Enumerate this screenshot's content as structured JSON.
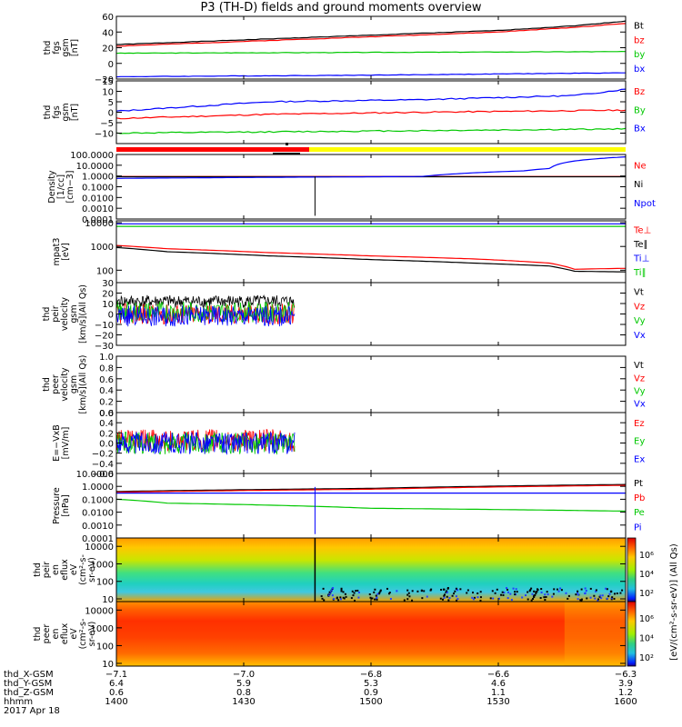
{
  "title": "P3 (TH-D) fields and ground moments overview",
  "colors": {
    "black": "#000000",
    "red": "#ff0000",
    "green": "#00c800",
    "blue": "#0000ff",
    "yellow": "#ffff00"
  },
  "chart_data": [
    {
      "type": "line",
      "ylabel": [
        "thd",
        "fgs",
        "gsm",
        "[nT]"
      ],
      "ylim": [
        -20,
        60
      ],
      "ticks": [
        [
          "60",
          60
        ],
        [
          "40",
          40
        ],
        [
          "20",
          20
        ],
        [
          "0",
          0
        ],
        [
          "−20",
          -20
        ]
      ],
      "series": [
        {
          "name": "Bt",
          "color": "black",
          "x": [
            0,
            0.25,
            0.5,
            0.75,
            0.9,
            1
          ],
          "y": [
            24,
            30,
            36,
            42,
            48,
            54
          ]
        },
        {
          "name": "bz",
          "color": "red",
          "x": [
            0,
            0.25,
            0.5,
            0.75,
            0.9,
            1
          ],
          "y": [
            22,
            28,
            34,
            40,
            46,
            51
          ]
        },
        {
          "name": "by",
          "color": "green",
          "x": [
            0,
            0.5,
            1
          ],
          "y": [
            13,
            14,
            15
          ]
        },
        {
          "name": "bx",
          "color": "blue",
          "x": [
            0,
            0.5,
            1
          ],
          "y": [
            -17,
            -15,
            -12
          ]
        }
      ]
    },
    {
      "type": "line",
      "ylabel": [
        "thd",
        "fgs",
        "gsm",
        "[nT]"
      ],
      "ylim": [
        -15,
        15
      ],
      "ticks": [
        [
          "15",
          15
        ],
        [
          "10",
          10
        ],
        [
          "5",
          5
        ],
        [
          "0",
          0
        ],
        [
          "−5",
          -5
        ],
        [
          "−10",
          -10
        ]
      ],
      "series": [
        {
          "name": "Bz",
          "color": "red",
          "x": [
            0,
            0.3,
            0.6,
            1
          ],
          "y": [
            -3,
            -1,
            0,
            1
          ]
        },
        {
          "name": "By",
          "color": "green",
          "x": [
            0,
            0.5,
            1
          ],
          "y": [
            -10,
            -9,
            -8
          ]
        },
        {
          "name": "Bx",
          "color": "blue",
          "x": [
            0,
            0.3,
            0.6,
            0.9,
            1
          ],
          "y": [
            0.5,
            5,
            6,
            8,
            11
          ]
        }
      ]
    },
    {
      "type": "line",
      "ylabel": [
        "Density",
        "[1/cc]",
        "[cm−3]"
      ],
      "log": true,
      "ylim": [
        0.0001,
        100
      ],
      "ticks": [
        [
          "100.0000",
          100
        ],
        [
          "10.0000",
          10
        ],
        [
          "1.0000",
          1
        ],
        [
          "0.1000",
          0.1
        ],
        [
          "0.0100",
          0.01
        ],
        [
          "0.0010",
          0.001
        ],
        [
          "0.0001",
          0.0001
        ]
      ],
      "series": [
        {
          "name": "Ne",
          "color": "red",
          "x": [
            0,
            1
          ],
          "y": [
            0.9,
            0.9
          ]
        },
        {
          "name": "Ni",
          "color": "black",
          "x": [
            0,
            1
          ],
          "y": [
            0.85,
            0.85
          ]
        },
        {
          "name": "Npot",
          "color": "blue",
          "x": [
            0,
            0.2,
            0.6,
            0.8,
            0.85,
            0.9,
            1
          ],
          "y": [
            0.6,
            0.7,
            0.9,
            3,
            5,
            25,
            60
          ]
        }
      ]
    },
    {
      "type": "line",
      "ylabel": [
        "mpat3",
        "[eV]"
      ],
      "log": true,
      "ylim": [
        30,
        12000
      ],
      "ticks": [
        [
          "10000",
          10000
        ],
        [
          "1000",
          1000
        ],
        [
          "100",
          100
        ]
      ],
      "series": [
        {
          "name": "Te⊥",
          "color": "red",
          "x": [
            0,
            0.1,
            0.3,
            0.5,
            0.7,
            0.85,
            0.9,
            1
          ],
          "y": [
            1100,
            800,
            550,
            400,
            300,
            200,
            110,
            120
          ]
        },
        {
          "name": "Te∥",
          "color": "black",
          "x": [
            0,
            0.1,
            0.3,
            0.5,
            0.7,
            0.85,
            0.9,
            1
          ],
          "y": [
            900,
            600,
            400,
            280,
            200,
            150,
            90,
            85
          ]
        },
        {
          "name": "Ti⊥",
          "color": "blue",
          "x": [
            0,
            1
          ],
          "y": [
            9000,
            9000
          ]
        },
        {
          "name": "Ti∥",
          "color": "green",
          "x": [
            0,
            1
          ],
          "y": [
            7000,
            7000
          ]
        }
      ]
    },
    {
      "type": "line",
      "ylabel": [
        "thd",
        "peir",
        "velocity",
        "gsm",
        "[km/s](All Qs)"
      ],
      "ylim": [
        -30,
        30
      ],
      "ticks": [
        [
          "30",
          30
        ],
        [
          "20",
          20
        ],
        [
          "10",
          10
        ],
        [
          "0",
          0
        ],
        [
          "−10",
          -10
        ],
        [
          "−20",
          -20
        ],
        [
          "−30",
          -30
        ]
      ],
      "series": [
        {
          "name": "Vt",
          "color": "black",
          "x": [
            0,
            0.35
          ],
          "y": [
            12,
            12
          ]
        },
        {
          "name": "Vz",
          "color": "red",
          "x": [
            0,
            0.35
          ],
          "y": [
            0,
            0
          ]
        },
        {
          "name": "Vy",
          "color": "green",
          "x": [
            0,
            0.35
          ],
          "y": [
            2,
            2
          ]
        },
        {
          "name": "Vx",
          "color": "blue",
          "x": [
            0,
            0.35
          ],
          "y": [
            -2,
            -2
          ]
        }
      ]
    },
    {
      "type": "line",
      "ylabel": [
        "thd",
        "peer",
        "velocity",
        "gsm",
        "[km/s](All Qs)"
      ],
      "ylim": [
        0,
        1
      ],
      "ticks": [
        [
          "1.0",
          1.0
        ],
        [
          "0.8",
          0.8
        ],
        [
          "0.6",
          0.6
        ],
        [
          "0.4",
          0.4
        ],
        [
          "0.2",
          0.2
        ],
        [
          "0.0",
          0.0
        ]
      ],
      "series": [
        {
          "name": "Vt",
          "color": "black",
          "x": [],
          "y": []
        },
        {
          "name": "Vz",
          "color": "red",
          "x": [],
          "y": []
        },
        {
          "name": "Vy",
          "color": "green",
          "x": [],
          "y": []
        },
        {
          "name": "Vx",
          "color": "blue",
          "x": [],
          "y": []
        }
      ]
    },
    {
      "type": "line",
      "ylabel": [
        "E=−VxB",
        "[mV/m]"
      ],
      "ylim": [
        -0.6,
        0.6
      ],
      "ticks": [
        [
          "0.6",
          0.6
        ],
        [
          "0.4",
          0.4
        ],
        [
          "0.2",
          0.2
        ],
        [
          "0.0",
          0.0
        ],
        [
          "−0.2",
          -0.2
        ],
        [
          "−0.4",
          -0.4
        ],
        [
          "−0.6",
          -0.6
        ]
      ],
      "series": [
        {
          "name": "Ez",
          "color": "red",
          "x": [
            0,
            0.35
          ],
          "y": [
            0.05,
            0.05
          ]
        },
        {
          "name": "Ey",
          "color": "green",
          "x": [
            0,
            0.35
          ],
          "y": [
            0,
            0
          ]
        },
        {
          "name": "Ex",
          "color": "blue",
          "x": [
            0,
            0.35
          ],
          "y": [
            0,
            0
          ]
        }
      ]
    },
    {
      "type": "line",
      "ylabel": [
        "Pressure",
        "[nPa]"
      ],
      "log": true,
      "ylim": [
        0.0001,
        10
      ],
      "ticks": [
        [
          "10.0000",
          10
        ],
        [
          "1.0000",
          1
        ],
        [
          "0.1000",
          0.1
        ],
        [
          "0.0100",
          0.01
        ],
        [
          "0.0010",
          0.001
        ],
        [
          "0.0001",
          0.0001
        ]
      ],
      "series": [
        {
          "name": "Pt",
          "color": "black",
          "x": [
            0,
            0.5,
            1
          ],
          "y": [
            0.4,
            0.7,
            1.4
          ]
        },
        {
          "name": "Pb",
          "color": "red",
          "x": [
            0,
            0.5,
            1
          ],
          "y": [
            0.35,
            0.6,
            1.2
          ]
        },
        {
          "name": "Pe",
          "color": "green",
          "x": [
            0,
            0.1,
            0.5,
            1
          ],
          "y": [
            0.1,
            0.05,
            0.02,
            0.012
          ]
        },
        {
          "name": "Pi",
          "color": "blue",
          "x": [
            0,
            1
          ],
          "y": [
            0.3,
            0.3
          ]
        }
      ]
    },
    {
      "type": "heatmap",
      "ylabel": [
        "thd",
        "peir",
        "en",
        "eflux",
        "eV",
        "(cm²-s-",
        "sr-eV)"
      ],
      "log": true,
      "ylim": [
        7,
        30000
      ],
      "ticks": [
        [
          "10000",
          10000
        ],
        [
          "1000",
          1000
        ],
        [
          "100",
          100
        ],
        [
          "10",
          10
        ]
      ],
      "colorbar_ticks": [
        "10⁶",
        "10⁴",
        "10²"
      ]
    },
    {
      "type": "heatmap",
      "ylabel": [
        "thd",
        "peer",
        "en",
        "eflux",
        "eV",
        "(cm²-s-",
        "sr-eV)"
      ],
      "log": true,
      "ylim": [
        7,
        30000
      ],
      "ticks": [
        [
          "10000",
          10000
        ],
        [
          "1000",
          1000
        ],
        [
          "100",
          100
        ],
        [
          "10",
          10
        ]
      ],
      "colorbar_ticks": [
        "10⁶",
        "10⁴",
        "10²"
      ]
    }
  ],
  "colorbar_label": "[eV/(cm²-s-sr-eV)] (All Qs)",
  "xaxis": {
    "row_labels": [
      "thd_X-GSM",
      "thd_Y-GSM",
      "thd_Z-GSM",
      "hhmm",
      "2017 Apr 18"
    ],
    "columns": [
      {
        "x": 0,
        "values": [
          "−7.1",
          "6.4",
          "0.6",
          "1400"
        ]
      },
      {
        "x": 0.25,
        "values": [
          "−7.0",
          "5.9",
          "0.8",
          "1430"
        ]
      },
      {
        "x": 0.5,
        "values": [
          "−6.8",
          "5.3",
          "0.9",
          "1500"
        ]
      },
      {
        "x": 0.75,
        "values": [
          "−6.6",
          "4.6",
          "1.1",
          "1530"
        ]
      },
      {
        "x": 1,
        "values": [
          "−6.3",
          "3.9",
          "1.2",
          "1600"
        ]
      }
    ]
  }
}
